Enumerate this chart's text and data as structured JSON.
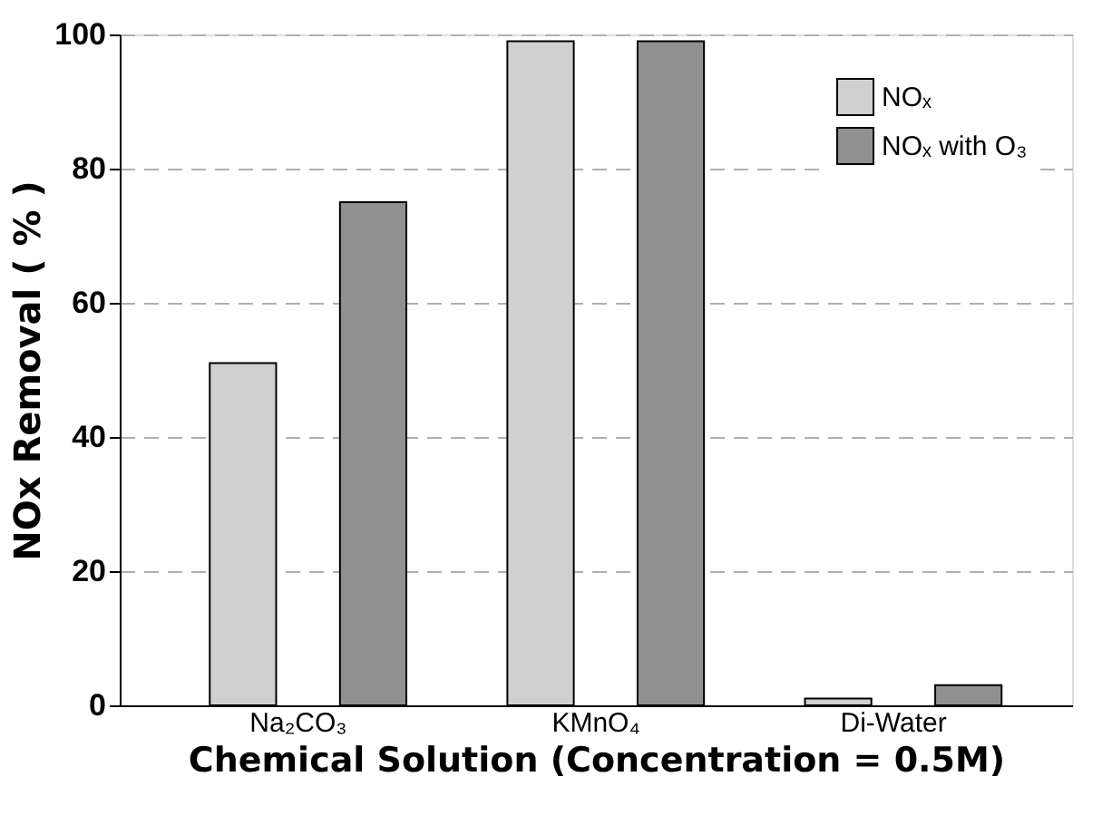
{
  "chart_data": {
    "type": "bar",
    "categories": [
      "Na₂CO₃",
      "KMnO₄",
      "Di-Water"
    ],
    "series": [
      {
        "name": "NOₓ",
        "color": "#d0d0d0",
        "values": [
          51,
          99,
          1
        ]
      },
      {
        "name": "NOₓ with O₃",
        "color": "#909090",
        "values": [
          75,
          99,
          3
        ]
      }
    ],
    "xlabel": "Chemical Solution (Concentration = 0.5M)",
    "ylabel": "NOx Removal ( % )",
    "ylim": [
      0,
      100
    ],
    "yticks": [
      0,
      20,
      40,
      60,
      80,
      100
    ],
    "grid": "y",
    "line_style": "dashed",
    "legend": "top right"
  }
}
